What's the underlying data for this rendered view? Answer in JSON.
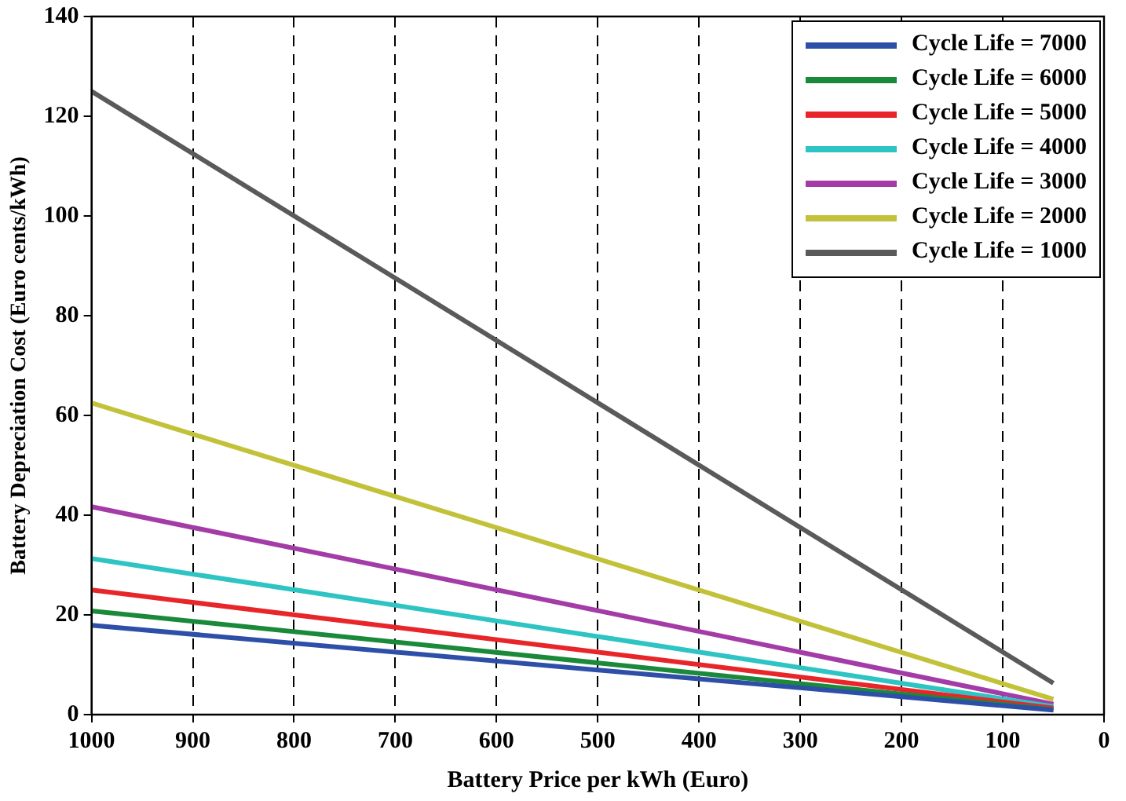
{
  "chart_data": {
    "type": "line",
    "xlabel": "Battery Price per kWh (Euro)",
    "ylabel": "Battery Depreciation Cost (Euro cents/kWh)",
    "x": [
      1000,
      50
    ],
    "series": [
      {
        "name": "Cycle Life = 7000",
        "color": "#2e4fa8",
        "values": [
          17.9,
          0.9
        ]
      },
      {
        "name": "Cycle Life = 6000",
        "color": "#1a8a3a",
        "values": [
          20.8,
          1
        ]
      },
      {
        "name": "Cycle Life = 5000",
        "color": "#e8262a",
        "values": [
          25,
          1.3
        ]
      },
      {
        "name": "Cycle Life = 4000",
        "color": "#2ec4c4",
        "values": [
          31.3,
          1.6
        ]
      },
      {
        "name": "Cycle Life = 3000",
        "color": "#a43ca8",
        "values": [
          41.7,
          2.1
        ]
      },
      {
        "name": "Cycle Life = 2000",
        "color": "#c2c23a",
        "values": [
          62.5,
          3.1
        ]
      },
      {
        "name": "Cycle Life = 1000",
        "color": "#5a5a5a",
        "values": [
          125,
          6.3
        ]
      }
    ],
    "xlim": [
      1000,
      0
    ],
    "xticks": [
      1000,
      900,
      800,
      700,
      600,
      500,
      400,
      300,
      200,
      100,
      0
    ],
    "ylim": [
      0,
      140
    ],
    "yticks": [
      0,
      20,
      40,
      60,
      80,
      100,
      120,
      140
    ],
    "grid": "x",
    "legend": "top right",
    "marker": "none",
    "line_style": "solid"
  }
}
